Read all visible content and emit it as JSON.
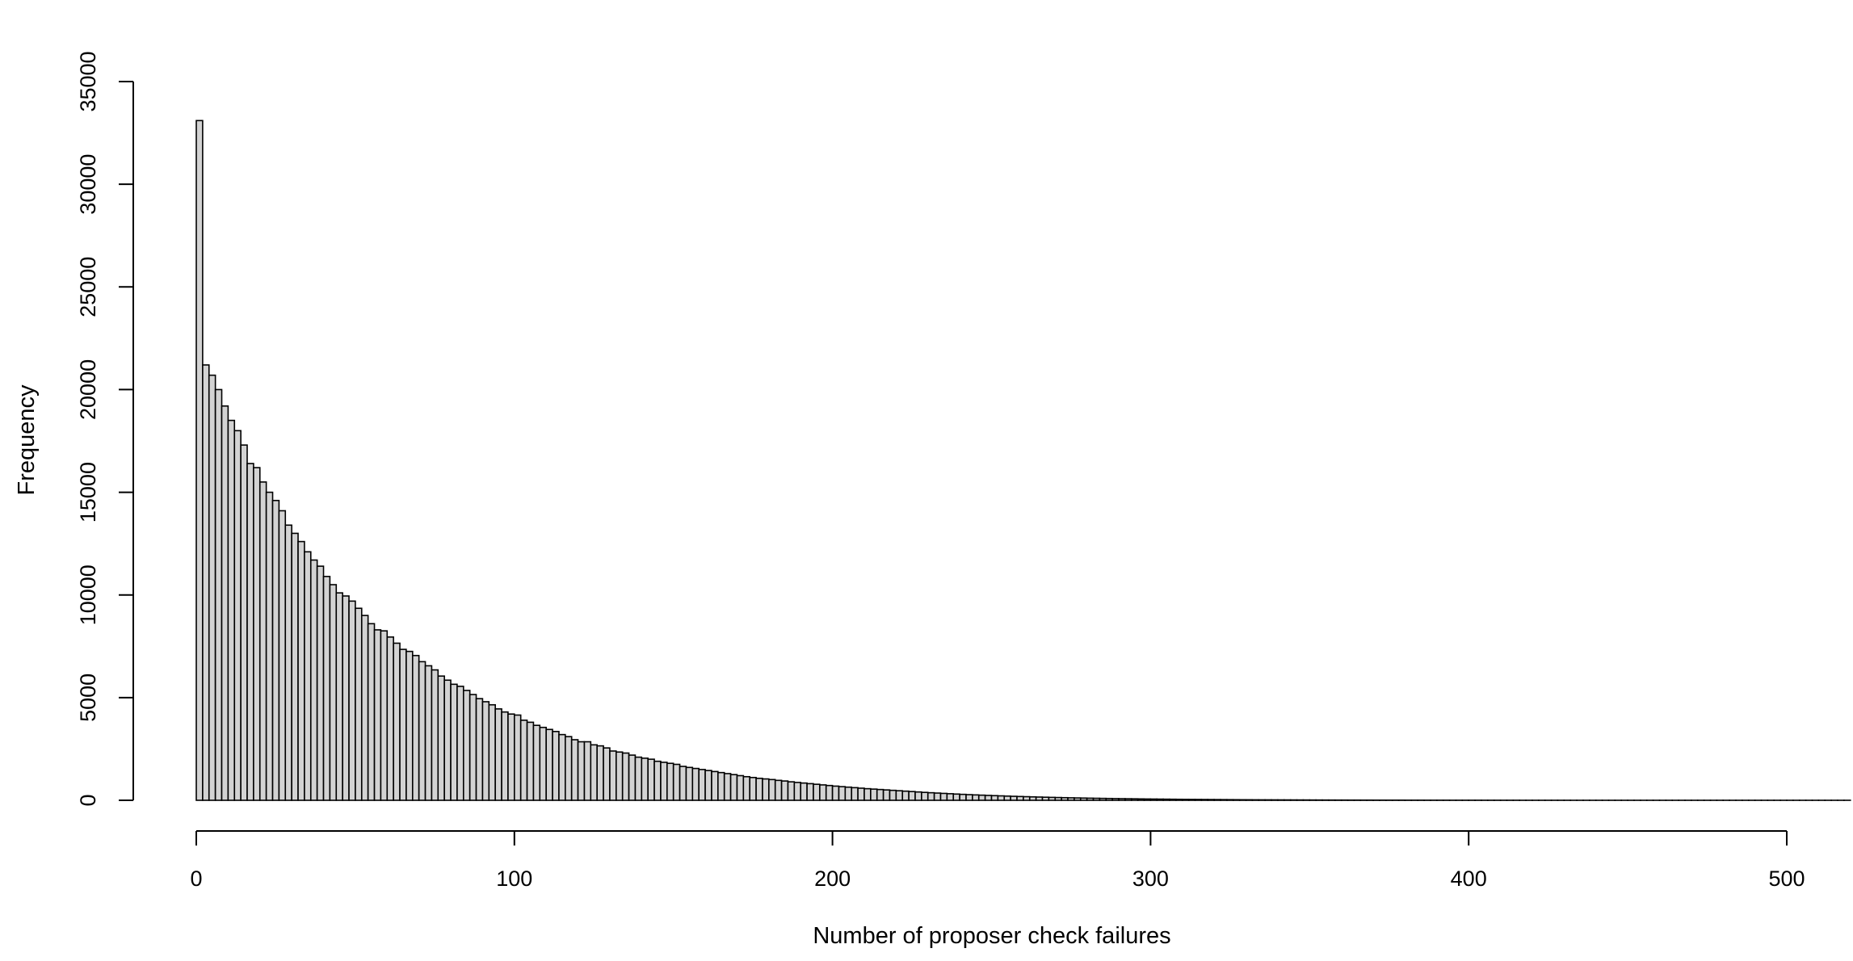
{
  "chart_data": {
    "type": "bar",
    "title": "",
    "xlabel": "Number of proposer check failures",
    "ylabel": "Frequency",
    "bin_width": 2,
    "x_start": 0,
    "x_end": 520,
    "xlim": [
      0,
      520
    ],
    "ylim": [
      0,
      35000
    ],
    "x_ticks": [
      0,
      100,
      200,
      300,
      400,
      500
    ],
    "y_ticks": [
      0,
      5000,
      10000,
      15000,
      20000,
      25000,
      30000,
      35000
    ],
    "grid": false,
    "legend": "none",
    "bar_color": "#d3d3d3",
    "edge_color": "#000000",
    "values": [
      33100,
      21200,
      20700,
      20000,
      19200,
      18500,
      18000,
      17300,
      16400,
      16200,
      15500,
      15000,
      14600,
      14100,
      13400,
      13000,
      12600,
      12100,
      11700,
      11400,
      10900,
      10500,
      10100,
      9950,
      9700,
      9350,
      9000,
      8600,
      8300,
      8250,
      7950,
      7650,
      7350,
      7250,
      7050,
      6750,
      6550,
      6350,
      6050,
      5850,
      5650,
      5550,
      5350,
      5150,
      4950,
      4800,
      4650,
      4450,
      4300,
      4200,
      4150,
      3900,
      3800,
      3650,
      3550,
      3450,
      3350,
      3200,
      3100,
      2950,
      2850,
      2850,
      2700,
      2650,
      2550,
      2400,
      2350,
      2300,
      2200,
      2100,
      2050,
      2000,
      1900,
      1850,
      1800,
      1750,
      1650,
      1600,
      1550,
      1500,
      1450,
      1400,
      1350,
      1300,
      1250,
      1200,
      1150,
      1110,
      1070,
      1040,
      1010,
      970,
      940,
      900,
      870,
      840,
      810,
      780,
      750,
      720,
      690,
      665,
      640,
      615,
      590,
      565,
      545,
      525,
      505,
      485,
      465,
      445,
      425,
      405,
      385,
      368,
      352,
      336,
      320,
      304,
      289,
      275,
      262,
      250,
      238,
      226,
      215,
      204,
      194,
      184,
      175,
      166,
      158,
      150,
      142,
      135,
      128,
      121,
      115,
      109,
      103,
      98,
      93,
      88,
      83,
      79,
      75,
      71,
      67,
      63,
      60,
      57,
      54,
      51,
      48,
      45,
      43,
      41,
      39,
      37,
      35,
      33,
      31,
      29,
      27,
      26,
      24,
      23,
      22,
      21,
      20,
      19,
      18,
      17,
      16,
      15,
      14,
      13,
      12,
      11,
      11,
      10,
      10,
      9,
      9,
      8,
      8,
      7,
      7,
      7,
      6,
      6,
      6,
      5,
      5,
      5,
      5,
      4,
      4,
      4,
      4,
      4,
      3,
      3,
      3,
      3,
      3,
      3,
      2,
      2,
      2,
      2,
      2,
      2,
      2,
      2,
      1,
      1,
      1,
      1,
      1,
      1,
      1,
      1,
      1,
      1,
      1,
      1,
      1,
      1,
      1,
      1,
      1,
      1,
      1,
      1,
      1,
      1,
      1,
      1,
      1,
      1,
      1,
      1,
      1,
      1,
      1,
      1,
      1,
      1,
      1,
      1,
      1,
      1,
      1,
      1,
      1,
      1,
      1,
      1
    ]
  }
}
